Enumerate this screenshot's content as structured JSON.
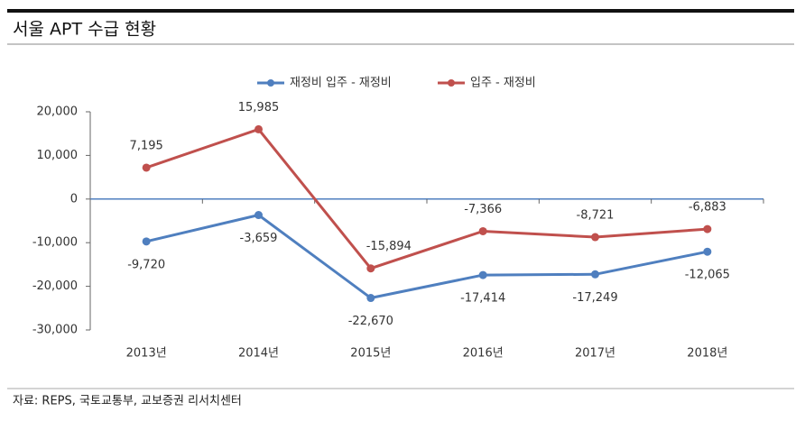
{
  "title": "서울 APT 수급 현황",
  "source": "자료: REPS, 국토교통부, 교보증권 리서치센터",
  "chart_data": {
    "type": "line",
    "categories": [
      "2013년",
      "2014년",
      "2015년",
      "2016년",
      "2017년",
      "2018년"
    ],
    "series": [
      {
        "name": "재정비 입주 - 재정비",
        "color": "#4f7fbf",
        "values": [
          -9720,
          -3659,
          -22670,
          -17414,
          -17249,
          -12065
        ],
        "value_labels": [
          "-9,720",
          "-3,659",
          "-22,670",
          "-17,414",
          "-17,249",
          "-12,065"
        ]
      },
      {
        "name": "입주 - 재정비",
        "color": "#c0504d",
        "values": [
          7195,
          15985,
          -15894,
          -7366,
          -8721,
          -6883
        ],
        "value_labels": [
          "7,195",
          "15,985",
          "-15,894",
          "-7,366",
          "-8,721",
          "-6,883"
        ]
      }
    ],
    "ylim": [
      -30000,
      20000
    ],
    "yticks": [
      {
        "value": -30000,
        "label": "-30,000"
      },
      {
        "value": -20000,
        "label": "-20,000"
      },
      {
        "value": -10000,
        "label": "-10,000"
      },
      0,
      {
        "value": 10000,
        "label": "10,000"
      },
      {
        "value": 20000,
        "label": "20,000"
      }
    ],
    "legend": "top"
  }
}
